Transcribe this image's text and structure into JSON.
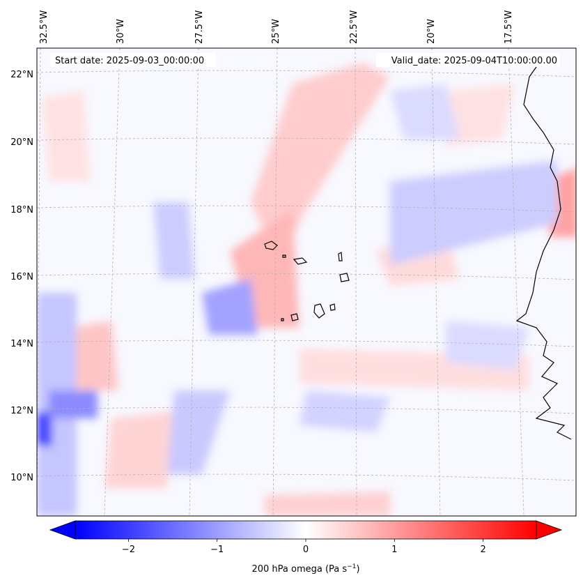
{
  "map": {
    "start_label": "Start date: 2025-09-03_00:00:00",
    "valid_label": "Valid_date: 2025-09-04T10:00:00.00",
    "lon_labels": [
      "32.5°W",
      "30°W",
      "27.5°W",
      "25°W",
      "22.5°W",
      "20°W",
      "17.5°W"
    ],
    "lat_labels": [
      "22°N",
      "20°N",
      "18°N",
      "16°N",
      "14°N",
      "12°N",
      "10°N"
    ],
    "field": "200 hPa omega",
    "colors": {
      "negative": "#0000ff",
      "zero": "#ffffff",
      "positive": "#ff0000",
      "coast": "#000000",
      "grid": "#b0b0b0"
    }
  },
  "colorbar": {
    "ticks": [
      "−2",
      "−1",
      "0",
      "1",
      "2"
    ],
    "tick_values": [
      -2,
      -1,
      0,
      1,
      2
    ],
    "range": [
      -2.6,
      2.6
    ],
    "extend": "both",
    "label": "200 hPa omega (Pa s",
    "label_sup": "−1",
    "label_tail": ")"
  }
}
